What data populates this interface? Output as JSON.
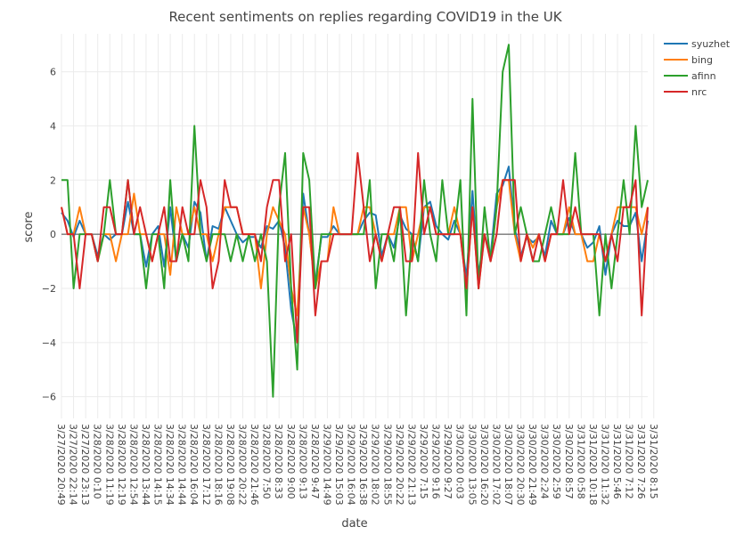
{
  "chart_data": {
    "type": "line",
    "title": "Recent sentiments on replies regarding COVID19 in the UK",
    "xlabel": "date",
    "ylabel": "score",
    "ylim": [
      -6.8,
      7.4
    ],
    "yticks": [
      -6,
      -4,
      -2,
      0,
      2,
      4,
      6
    ],
    "grid": true,
    "legend_position": "top-right",
    "x_tick_labels": [
      "3/27/2020 20:49",
      "3/27/2020 22:14",
      "3/27/2020 23:13",
      "3/28/2020 0:10",
      "3/28/2020 11:19",
      "3/28/2020 12:19",
      "3/28/2020 12:54",
      "3/28/2020 13:44",
      "3/28/2020 14:15",
      "3/28/2020 14:34",
      "3/28/2020 14:44",
      "3/28/2020 16:04",
      "3/28/2020 17:12",
      "3/28/2020 18:16",
      "3/28/2020 19:08",
      "3/28/2020 20:22",
      "3/28/2020 21:46",
      "3/28/2020 7:50",
      "3/28/2020 8:33",
      "3/28/2020 9:00",
      "3/28/2020 9:13",
      "3/28/2020 9:47",
      "3/29/2020 14:49",
      "3/29/2020 15:03",
      "3/29/2020 16:04",
      "3/29/2020 16:38",
      "3/29/2020 18:02",
      "3/29/2020 18:55",
      "3/29/2020 20:22",
      "3/29/2020 21:13",
      "3/29/2020 7:15",
      "3/29/2020 9:16",
      "3/29/2020 9:27",
      "3/30/2020 0:03",
      "3/30/2020 13:05",
      "3/30/2020 16:20",
      "3/30/2020 17:02",
      "3/30/2020 18:07",
      "3/30/2020 20:30",
      "3/30/2020 21:49",
      "3/30/2020 2:24",
      "3/30/2020 2:59",
      "3/30/2020 8:57",
      "3/31/2020 0:58",
      "3/31/2020 10:18",
      "3/31/2020 11:32",
      "3/31/2020 5:46",
      "3/31/2020 7:12",
      "3/31/2020 7:26",
      "3/31/2020 8:15"
    ],
    "points_per_tick": 2,
    "series": [
      {
        "name": "syuzhet",
        "color": "#1f77b4",
        "values": [
          0.8,
          0.5,
          -0.1,
          0.5,
          0,
          0,
          -0.8,
          0,
          -0.2,
          0,
          0,
          1.2,
          0,
          0,
          -1.2,
          0,
          0.3,
          -1.2,
          1,
          -1,
          0,
          -0.5,
          1.2,
          0.8,
          -1,
          0.3,
          0.2,
          1,
          0.5,
          0,
          -0.3,
          -0.1,
          -0.1,
          -0.5,
          0.3,
          0.2,
          0.5,
          -0.5,
          -2.8,
          -4,
          1.5,
          0,
          -1.8,
          -0.1,
          -0.1,
          0.3,
          0,
          0,
          0,
          0,
          0.5,
          0.8,
          0.7,
          -0.8,
          0,
          -0.5,
          0.7,
          0.2,
          0,
          -1,
          1,
          1.2,
          0.3,
          0,
          -0.2,
          0.5,
          0,
          -1.6,
          1.6,
          -1.5,
          0,
          -0.8,
          1.5,
          1.8,
          2.5,
          0.2,
          -0.8,
          -0.1,
          -0.3,
          -0.1,
          -0.8,
          0.5,
          0,
          0,
          0.6,
          0,
          0,
          -0.5,
          -0.3,
          0.3,
          -1.5,
          0,
          0.5,
          0.3,
          0.3,
          0.8,
          -1,
          0.5
        ]
      },
      {
        "name": "bing",
        "color": "#ff7f0e",
        "values": [
          1,
          0,
          0,
          1,
          0,
          0,
          -1,
          0,
          0,
          -1,
          0,
          0,
          1.5,
          0,
          0,
          -1,
          0,
          0,
          -1.5,
          1,
          0,
          0,
          1,
          0,
          0,
          -1,
          0,
          1,
          1,
          1,
          0,
          0,
          0,
          -2,
          0,
          1,
          0.5,
          0,
          -2,
          -3,
          1,
          0,
          -2,
          -1,
          -1,
          1,
          0,
          0,
          0,
          0,
          1,
          1,
          0,
          -1,
          0,
          0,
          1,
          1,
          -1,
          0,
          1,
          1,
          0,
          0,
          0,
          1,
          0,
          -2,
          1,
          -2,
          0,
          -1,
          1,
          2,
          2,
          0,
          -1,
          0,
          -0.5,
          0,
          -1,
          0,
          0,
          0,
          1,
          0,
          0,
          -1,
          -1,
          0,
          -1,
          0,
          1,
          1,
          1,
          1,
          0,
          1
        ]
      },
      {
        "name": "afinn",
        "color": "#2ca02c",
        "values": [
          2,
          2,
          -2,
          0,
          0,
          0,
          -1,
          0,
          2,
          0,
          0,
          2,
          0,
          0,
          -2,
          0,
          0,
          -2,
          2,
          -1,
          0,
          -1,
          4,
          0,
          -1,
          0,
          0,
          0,
          -1,
          0,
          -1,
          0,
          -1,
          0,
          -1,
          -6,
          1,
          3,
          -2,
          -5,
          3,
          2,
          -2,
          0,
          0,
          0,
          0,
          0,
          0,
          0,
          0,
          2,
          -2,
          0,
          0,
          -1,
          1,
          -3,
          0,
          -1,
          2,
          0,
          -1,
          2,
          0,
          0,
          2,
          -3,
          5,
          -2,
          1,
          -1,
          1,
          6,
          7,
          0,
          1,
          0,
          -1,
          -1,
          0,
          1,
          0,
          0,
          0,
          3,
          0,
          0,
          0,
          -3,
          0,
          -2,
          0,
          2,
          0,
          4,
          1,
          2
        ]
      },
      {
        "name": "nrc",
        "color": "#d62728",
        "values": [
          1,
          0,
          0,
          -2,
          0,
          0,
          -1,
          1,
          1,
          0,
          0,
          2,
          0,
          1,
          0,
          -1,
          0,
          1,
          -1,
          -1,
          1,
          0,
          0,
          2,
          1,
          -2,
          -1,
          2,
          1,
          1,
          0,
          0,
          0,
          -1,
          1,
          2,
          2,
          -1,
          0,
          -4,
          1,
          1,
          -3,
          -1,
          -1,
          0,
          0,
          0,
          0,
          3,
          1,
          -1,
          0,
          -1,
          0,
          1,
          1,
          -1,
          -1,
          3,
          0,
          1,
          0,
          0,
          0,
          0,
          0,
          -2,
          1,
          -2,
          0,
          -1,
          0,
          2,
          2,
          2,
          -1,
          0,
          -1,
          0,
          -1,
          0,
          0,
          2,
          0,
          1,
          0,
          0,
          0,
          0,
          -1,
          0,
          -1,
          1,
          1,
          2,
          -3,
          1
        ]
      }
    ]
  }
}
